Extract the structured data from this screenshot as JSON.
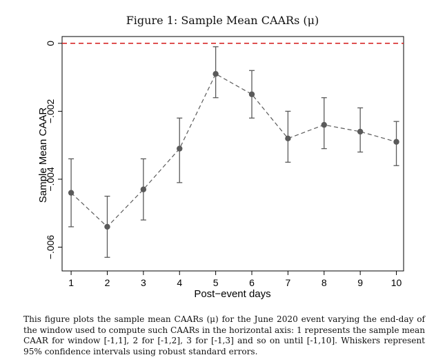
{
  "figure": {
    "title": "Figure 1: Sample Mean CAARs (μ)",
    "caption": "This figure plots the sample mean CAARs (μ) for the June 2020 event varying the end-day of the window used to compute such CAARs in the horizontal axis: 1 represents the sample mean CAAR for window [-1,1], 2 for [-1,2], 3 for [-1,3] and so on until [-1,10]. Whiskers represent 95% confidence intervals using robust standard errors."
  },
  "chart_data": {
    "type": "line",
    "xlabel": "Post−event days",
    "ylabel": "Sample Mean CAAR",
    "x": [
      1,
      2,
      3,
      4,
      5,
      6,
      7,
      8,
      9,
      10
    ],
    "y": [
      -0.0044,
      -0.0054,
      -0.0043,
      -0.0031,
      -0.0009,
      -0.0015,
      -0.0028,
      -0.0024,
      -0.0026,
      -0.0029
    ],
    "ci_low": [
      -0.0054,
      -0.0063,
      -0.0052,
      -0.0041,
      -0.0016,
      -0.0022,
      -0.0035,
      -0.0031,
      -0.0032,
      -0.0036
    ],
    "ci_high": [
      -0.0034,
      -0.0045,
      -0.0034,
      -0.0022,
      -0.0001,
      -0.0008,
      -0.002,
      -0.0016,
      -0.0019,
      -0.0023
    ],
    "xlim": [
      0.75,
      10.2
    ],
    "ylim": [
      -0.0067,
      0.0002
    ],
    "x_ticks": [
      1,
      2,
      3,
      4,
      5,
      6,
      7,
      8,
      9,
      10
    ],
    "x_tick_labels": [
      "1",
      "2",
      "3",
      "4",
      "5",
      "6",
      "7",
      "8",
      "9",
      "10"
    ],
    "y_ticks": [
      0,
      -0.002,
      -0.004,
      -0.006
    ],
    "y_tick_labels": [
      "0",
      "−.002",
      "−.004",
      "−.006"
    ],
    "reference_line": {
      "y": 0,
      "style": "dashed",
      "color": "#d62728"
    },
    "line_style": "dashed",
    "marker_color": "#5a5a5a",
    "errorbar_color": "#5a5a5a",
    "grid": false,
    "legend": "none"
  }
}
